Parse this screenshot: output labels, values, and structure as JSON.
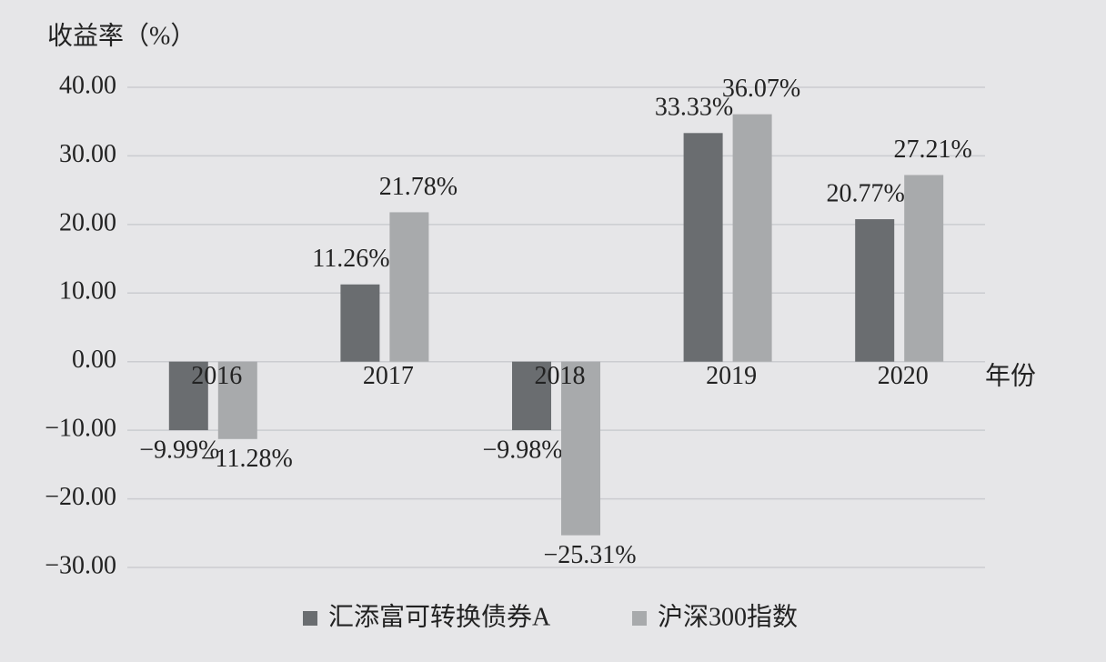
{
  "chart_data": {
    "type": "bar",
    "y_axis_label": "收益率（%）",
    "x_axis_label": "年份",
    "categories": [
      "2016",
      "2017",
      "2018",
      "2019",
      "2020"
    ],
    "series": [
      {
        "name": "汇添富可转换债券A",
        "color": "#6a6d70",
        "values": [
          -9.99,
          11.26,
          -9.98,
          33.33,
          20.77
        ],
        "value_labels": [
          "−9.99%",
          "11.26%",
          "−9.98%",
          "33.33%",
          "20.77%"
        ]
      },
      {
        "name": "沪深300指数",
        "color": "#a8aaac",
        "values": [
          -11.28,
          21.78,
          -25.31,
          36.07,
          27.21
        ],
        "value_labels": [
          "−11.28%",
          "21.78%",
          "−25.31%",
          "36.07%",
          "27.21%"
        ]
      }
    ],
    "ylim": [
      -30,
      40
    ],
    "yticks": [
      {
        "value": 40,
        "label": "40.00"
      },
      {
        "value": 30,
        "label": "30.00"
      },
      {
        "value": 20,
        "label": "20.00"
      },
      {
        "value": 10,
        "label": "10.00"
      },
      {
        "value": 0,
        "label": "0.00"
      },
      {
        "value": -10,
        "label": "−10.00"
      },
      {
        "value": -20,
        "label": "−20.00"
      },
      {
        "value": -30,
        "label": "−30.00"
      }
    ],
    "grid": true
  }
}
